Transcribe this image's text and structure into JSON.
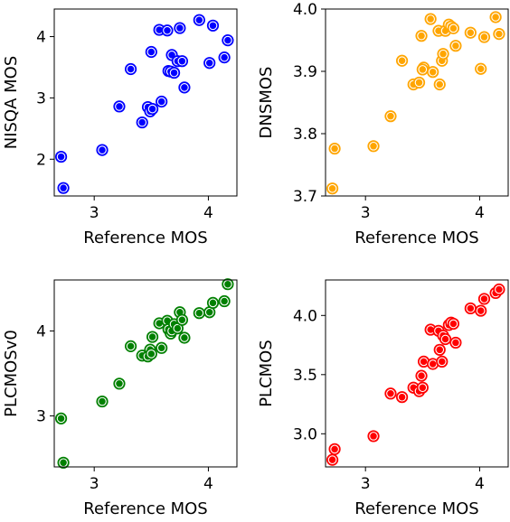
{
  "chart_data": [
    {
      "type": "scatter",
      "xlabel": "Reference MOS",
      "ylabel": "NISQA MOS",
      "color": "#0000ff",
      "xlim": [
        2.65,
        4.25
      ],
      "ylim": [
        1.4,
        4.45
      ],
      "xticks": [
        3,
        4
      ],
      "yticks": [
        2,
        3,
        4
      ],
      "x": [
        2.71,
        2.73,
        3.07,
        3.22,
        3.32,
        3.42,
        3.47,
        3.49,
        3.51,
        3.5,
        3.57,
        3.59,
        3.64,
        3.65,
        3.67,
        3.68,
        3.7,
        3.73,
        3.75,
        3.77,
        3.79,
        3.92,
        4.01,
        4.04,
        4.14,
        4.17
      ],
      "y": [
        2.04,
        1.53,
        2.15,
        2.86,
        3.47,
        2.6,
        2.85,
        2.78,
        2.82,
        3.75,
        4.11,
        2.94,
        4.1,
        3.44,
        3.43,
        3.7,
        3.41,
        3.6,
        4.14,
        3.6,
        3.17,
        4.27,
        3.57,
        4.18,
        3.66,
        3.94
      ]
    },
    {
      "type": "scatter",
      "xlabel": "Reference MOS",
      "ylabel": "DNSMOS",
      "color": "#ffa500",
      "xlim": [
        2.65,
        4.25
      ],
      "ylim": [
        3.7,
        4.0
      ],
      "xticks": [
        3,
        4
      ],
      "yticks": [
        "3.7",
        "3.8",
        "3.9",
        "4.0"
      ],
      "x": [
        2.71,
        2.73,
        3.07,
        3.22,
        3.32,
        3.42,
        3.47,
        3.49,
        3.51,
        3.5,
        3.57,
        3.59,
        3.64,
        3.65,
        3.67,
        3.68,
        3.7,
        3.73,
        3.75,
        3.77,
        3.79,
        3.92,
        4.01,
        4.04,
        4.14,
        4.17
      ],
      "y": [
        3.712,
        3.776,
        3.78,
        3.828,
        3.917,
        3.879,
        3.882,
        3.957,
        3.906,
        3.903,
        3.984,
        3.899,
        3.965,
        3.879,
        3.917,
        3.928,
        3.965,
        3.975,
        3.972,
        3.969,
        3.941,
        3.962,
        3.904,
        3.955,
        3.987,
        3.96
      ]
    },
    {
      "type": "scatter",
      "xlabel": "Reference MOS",
      "ylabel": "PLCMOSv0",
      "color": "#008000",
      "xlim": [
        2.65,
        4.25
      ],
      "ylim": [
        2.4,
        4.6
      ],
      "xticks": [
        3,
        4
      ],
      "yticks": [
        3,
        4
      ],
      "x": [
        2.71,
        2.73,
        3.07,
        3.22,
        3.32,
        3.42,
        3.47,
        3.49,
        3.51,
        3.5,
        3.57,
        3.59,
        3.64,
        3.65,
        3.67,
        3.68,
        3.7,
        3.73,
        3.75,
        3.77,
        3.79,
        3.92,
        4.01,
        4.04,
        4.14,
        4.17
      ],
      "y": [
        2.97,
        2.45,
        3.17,
        3.38,
        3.82,
        3.71,
        3.7,
        3.78,
        3.93,
        3.73,
        4.09,
        3.8,
        4.12,
        4.02,
        3.97,
        4.0,
        4.08,
        4.03,
        4.22,
        4.13,
        3.92,
        4.21,
        4.22,
        4.33,
        4.35,
        4.55
      ]
    },
    {
      "type": "scatter",
      "xlabel": "Reference MOS",
      "ylabel": "PLCMOS",
      "color": "#ff0000",
      "xlim": [
        2.65,
        4.25
      ],
      "ylim": [
        2.72,
        4.3
      ],
      "xticks": [
        3,
        4
      ],
      "yticks": [
        "3.0",
        "3.5",
        "4.0"
      ],
      "x": [
        2.71,
        2.73,
        3.07,
        3.22,
        3.32,
        3.42,
        3.47,
        3.49,
        3.51,
        3.5,
        3.57,
        3.59,
        3.64,
        3.65,
        3.67,
        3.68,
        3.7,
        3.73,
        3.75,
        3.77,
        3.79,
        3.92,
        4.01,
        4.04,
        4.14,
        4.17
      ],
      "y": [
        2.78,
        2.87,
        2.98,
        3.34,
        3.31,
        3.39,
        3.36,
        3.49,
        3.61,
        3.39,
        3.88,
        3.59,
        3.87,
        3.71,
        3.61,
        3.83,
        3.8,
        3.92,
        3.94,
        3.93,
        3.77,
        4.06,
        4.04,
        4.14,
        4.19,
        4.22
      ]
    }
  ]
}
